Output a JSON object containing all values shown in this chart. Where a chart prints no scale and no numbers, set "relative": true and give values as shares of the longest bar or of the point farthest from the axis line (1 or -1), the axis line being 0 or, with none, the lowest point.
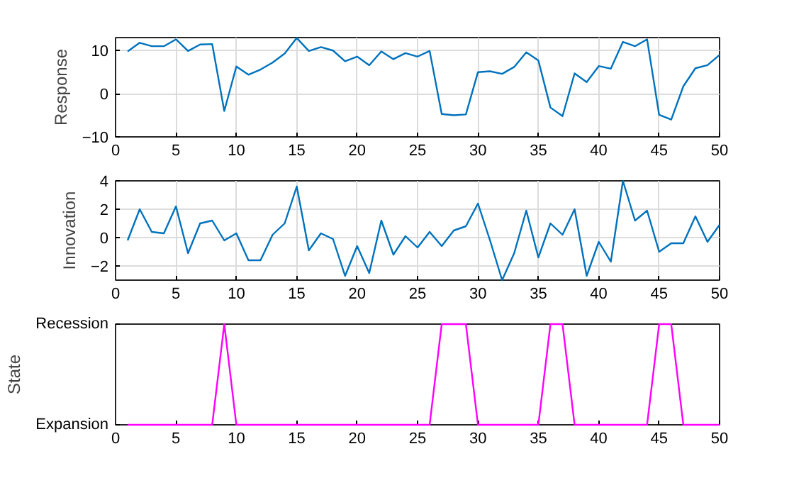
{
  "chart_data": [
    {
      "type": "line",
      "ylabel": "Response",
      "x": [
        1,
        2,
        3,
        4,
        5,
        6,
        7,
        8,
        9,
        10,
        11,
        12,
        13,
        14,
        15,
        16,
        17,
        18,
        19,
        20,
        21,
        22,
        23,
        24,
        25,
        26,
        27,
        28,
        29,
        30,
        31,
        32,
        33,
        34,
        35,
        36,
        37,
        38,
        39,
        40,
        41,
        42,
        43,
        44,
        45,
        46,
        47,
        48,
        49,
        50
      ],
      "xlim": [
        0,
        50
      ],
      "xticks": [
        0,
        5,
        10,
        15,
        20,
        25,
        30,
        35,
        40,
        45,
        50
      ],
      "ylim": [
        -10,
        13
      ],
      "yticks": [
        -10,
        0,
        10
      ],
      "grid": true,
      "series": [
        {
          "color": "#0072bd",
          "values": [
            9.8,
            11.8,
            11,
            11,
            12.6,
            9.9,
            11.4,
            11.5,
            -4,
            6.3,
            4.4,
            5.6,
            7.2,
            9.3,
            12.9,
            9.9,
            10.8,
            10,
            7.5,
            8.6,
            6.6,
            9.8,
            8,
            9.4,
            8.6,
            9.9,
            -4.7,
            -5,
            -4.8,
            5,
            5.2,
            4.6,
            6.2,
            9.6,
            7.7,
            -3.2,
            -5.2,
            4.7,
            2.7,
            6.4,
            5.8,
            12,
            11,
            12.6,
            -4.9,
            -6,
            1.7,
            5.9,
            6.6,
            9
          ]
        }
      ]
    },
    {
      "type": "line",
      "ylabel": "Innovation",
      "x": [
        1,
        2,
        3,
        4,
        5,
        6,
        7,
        8,
        9,
        10,
        11,
        12,
        13,
        14,
        15,
        16,
        17,
        18,
        19,
        20,
        21,
        22,
        23,
        24,
        25,
        26,
        27,
        28,
        29,
        30,
        31,
        32,
        33,
        34,
        35,
        36,
        37,
        38,
        39,
        40,
        41,
        42,
        43,
        44,
        45,
        46,
        47,
        48,
        49,
        50
      ],
      "xlim": [
        0,
        50
      ],
      "xticks": [
        0,
        5,
        10,
        15,
        20,
        25,
        30,
        35,
        40,
        45,
        50
      ],
      "ylim": [
        -3,
        4
      ],
      "yticks": [
        -2,
        0,
        2,
        4
      ],
      "grid": true,
      "series": [
        {
          "color": "#0072bd",
          "values": [
            -0.2,
            2,
            0.4,
            0.3,
            2.2,
            -1.1,
            1,
            1.2,
            -0.2,
            0.3,
            -1.6,
            -1.6,
            0.2,
            1,
            3.6,
            -0.9,
            0.3,
            -0.1,
            -2.7,
            -0.6,
            -2.5,
            1.2,
            -1.2,
            0.1,
            -0.7,
            0.4,
            -0.6,
            0.5,
            0.8,
            2.4,
            -0.2,
            -3,
            -1.1,
            1.9,
            -1.4,
            1,
            0.2,
            2,
            -2.7,
            -0.3,
            -1.7,
            4,
            1.2,
            1.9,
            -1,
            -0.4,
            -0.4,
            1.5,
            -0.3,
            0.9
          ]
        }
      ]
    },
    {
      "type": "line",
      "ylabel": "State",
      "x": [
        1,
        2,
        3,
        4,
        5,
        6,
        7,
        8,
        9,
        10,
        11,
        12,
        13,
        14,
        15,
        16,
        17,
        18,
        19,
        20,
        21,
        22,
        23,
        24,
        25,
        26,
        27,
        28,
        29,
        30,
        31,
        32,
        33,
        34,
        35,
        36,
        37,
        38,
        39,
        40,
        41,
        42,
        43,
        44,
        45,
        46,
        47,
        48,
        49,
        50
      ],
      "xlim": [
        0,
        50
      ],
      "xticks": [
        0,
        5,
        10,
        15,
        20,
        25,
        30,
        35,
        40,
        45,
        50
      ],
      "relative": true,
      "annotations": [
        "Expansion",
        "Recession"
      ],
      "grid": false,
      "series": [
        {
          "color": "#ff00ff",
          "values": [
            0,
            0,
            0,
            0,
            0,
            0,
            0,
            0,
            1,
            0,
            0,
            0,
            0,
            0,
            0,
            0,
            0,
            0,
            0,
            0,
            0,
            0,
            0,
            0,
            0,
            0,
            1,
            1,
            1,
            0,
            0,
            0,
            0,
            0,
            0,
            1,
            1,
            0,
            0,
            0,
            0,
            0,
            0,
            0,
            1,
            1,
            0,
            0,
            0,
            0
          ]
        }
      ]
    }
  ]
}
